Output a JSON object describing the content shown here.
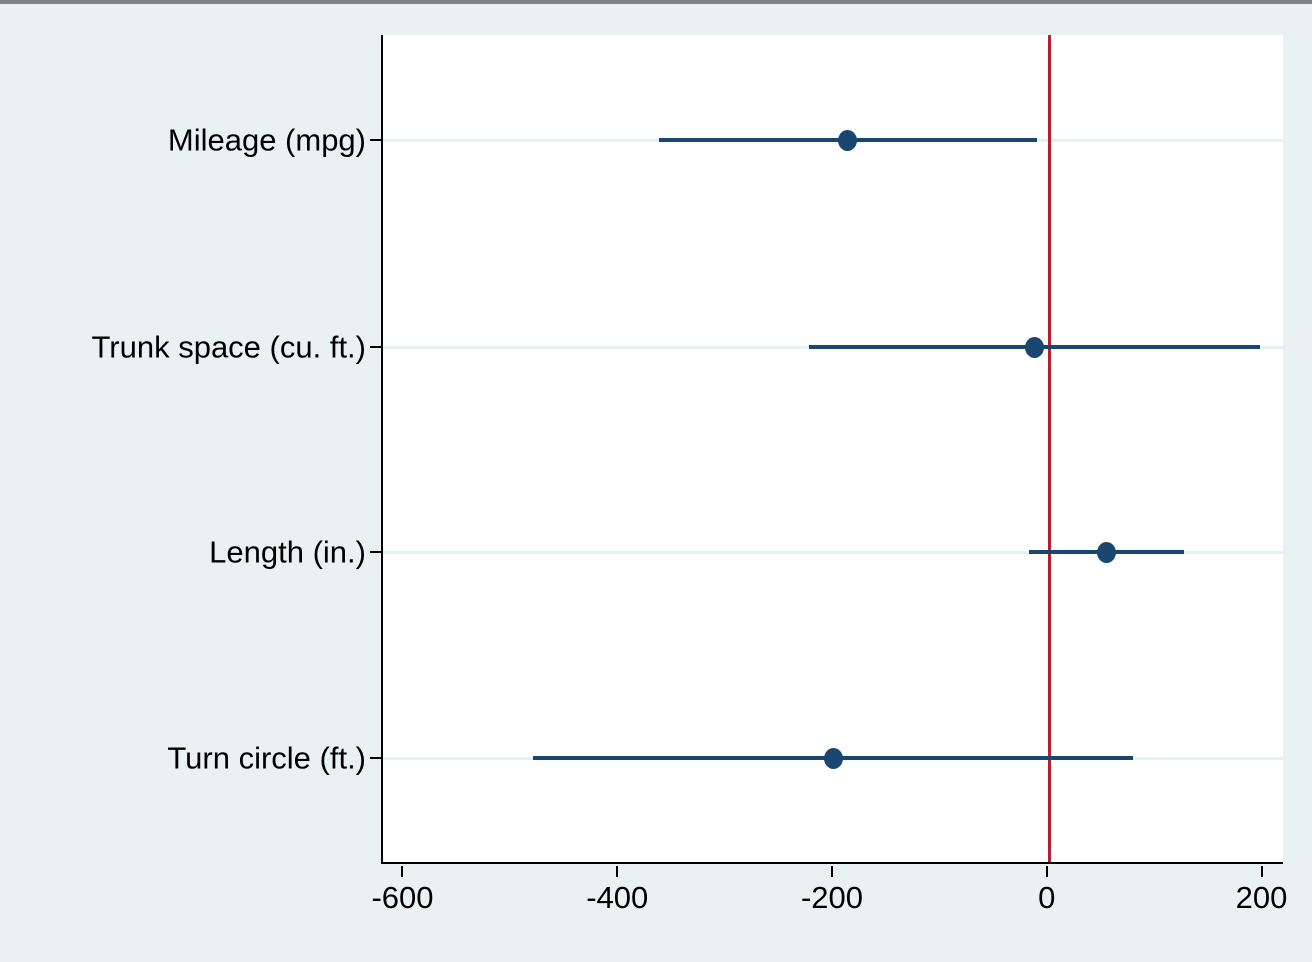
{
  "window": {
    "top_bar_color": "#7f8384",
    "background_color": "#eaf1f3"
  },
  "chart_data": {
    "type": "scatter",
    "subtype": "coefficient-plot-horizontal-ci",
    "title": "",
    "xlabel": "",
    "ylabel": "",
    "categories": [
      "Mileage (mpg)",
      "Trunk space (cu. ft.)",
      "Length (in.)",
      "Turn circle (ft.)"
    ],
    "series": [
      {
        "name": "coefficient-estimates",
        "values": [
          -187,
          -13,
          54,
          -200
        ],
        "ci_low": [
          -363,
          -223,
          -18,
          -480
        ],
        "ci_high": [
          -11,
          197,
          126,
          78
        ]
      }
    ],
    "x_ticks": [
      -600,
      -400,
      -200,
      0,
      200
    ],
    "x_tick_labels": [
      "-600",
      "-400",
      "-200",
      "0",
      "200"
    ],
    "xlim": [
      -620,
      220
    ],
    "ref_line_x": 0,
    "grid": true,
    "legend": "none",
    "colors": {
      "marker": "#1a476f",
      "ci_line": "#1a476f",
      "ref_line": "#b51e33",
      "grid_line": "#e7f0f2",
      "axis_line": "#000000",
      "plot_bg": "#ffffff",
      "outer_bg": "#eaf1f3"
    }
  }
}
